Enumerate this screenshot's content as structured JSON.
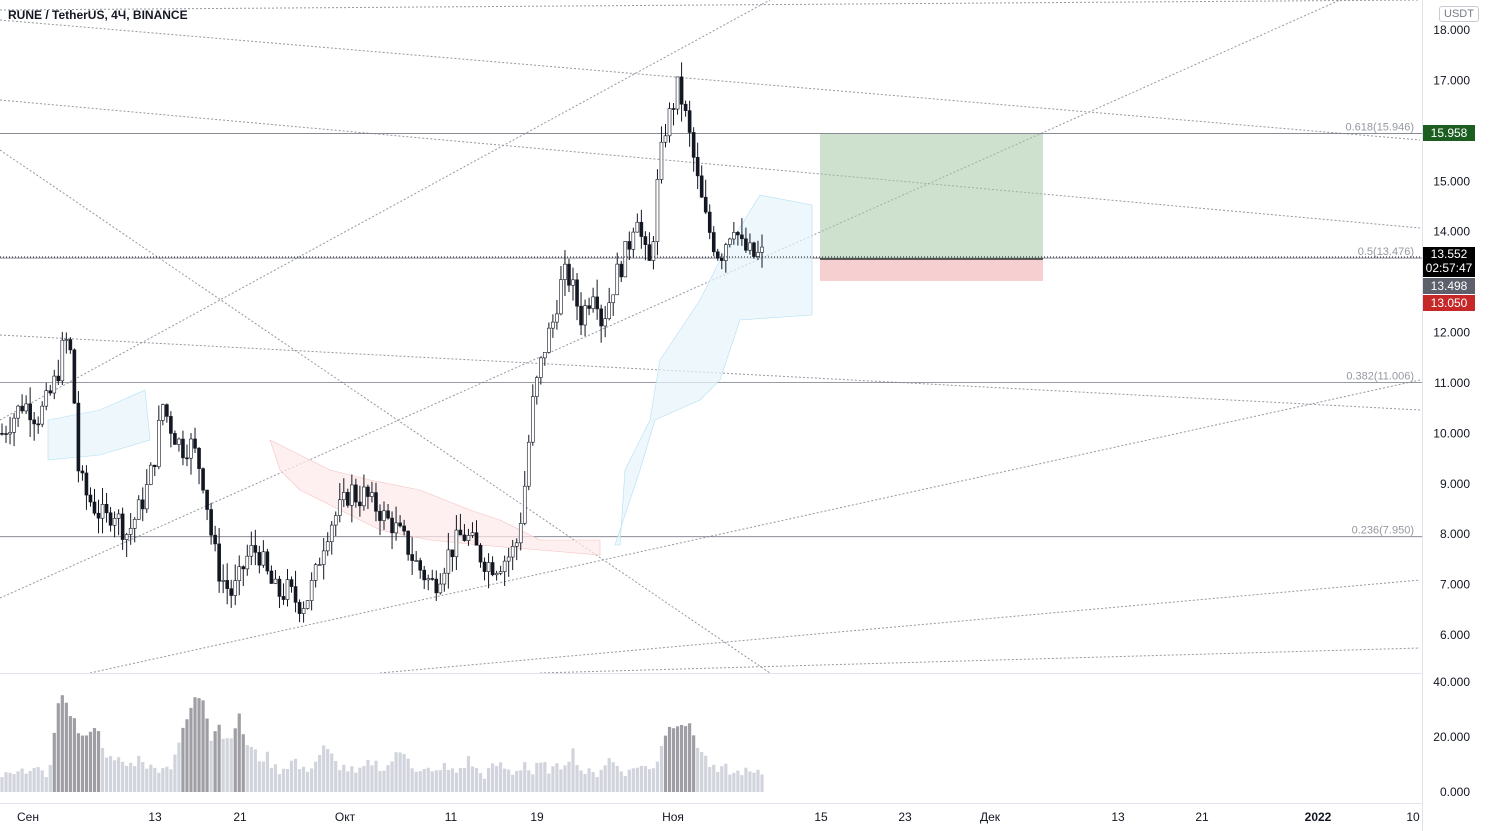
{
  "header": {
    "title": "RUNE / TetherUS, 4Ч, BINANCE"
  },
  "unit_button": "USDT",
  "price_axis": {
    "labels": [
      "18.000",
      "17.000",
      "15.000",
      "14.000",
      "12.000",
      "11.000",
      "10.000",
      "9.000",
      "8.000",
      "7.000",
      "6.000"
    ]
  },
  "volume_axis": {
    "labels": [
      "40.000",
      "20.000",
      "0.000"
    ]
  },
  "time_axis": {
    "labels": [
      "Сен",
      "13",
      "21",
      "Окт",
      "11",
      "19",
      "Ноя",
      "15",
      "23",
      "Дек",
      "13",
      "21",
      "2022",
      "10"
    ]
  },
  "price_tags": {
    "target": {
      "text": "15.958",
      "color": "#1b5e20"
    },
    "current": {
      "text": "13.552",
      "countdown": "02:57:47",
      "color": "#000000"
    },
    "entry": {
      "text": "13.498",
      "color": "#5d606b"
    },
    "stop": {
      "text": "13.050",
      "color": "#c62828"
    }
  },
  "fib_levels": [
    {
      "ratio": "0.618",
      "price": 15.946,
      "label": "0.618(15.946)"
    },
    {
      "ratio": "0.5",
      "price": 13.476,
      "label": "0.5(13.476)"
    },
    {
      "ratio": "0.382",
      "price": 11.006,
      "label": "0.382(11.006)"
    },
    {
      "ratio": "0.236",
      "price": 7.95,
      "label": "0.236(7.950)"
    }
  ],
  "chart_data": {
    "type": "candlestick",
    "symbol": "RUNE / TetherUS",
    "interval": "4Ч",
    "exchange": "BINANCE",
    "price_range": [
      5.0,
      18.5
    ],
    "volume_range": [
      0,
      40
    ],
    "grid": false,
    "position_tool": {
      "entry": 13.498,
      "target": 15.958,
      "stop": 13.05
    },
    "close_path": [
      10.0,
      10.2,
      10.4,
      10.6,
      10.5,
      10.3,
      10.5,
      10.8,
      11.2,
      11.9,
      11.5,
      9.2,
      8.8,
      8.6,
      8.4,
      8.3,
      8.5,
      8.2,
      8.0,
      8.3,
      8.6,
      9.0,
      9.6,
      10.6,
      10.2,
      9.9,
      9.7,
      9.8,
      9.5,
      9.0,
      8.0,
      7.3,
      7.0,
      6.8,
      7.1,
      7.5,
      7.7,
      7.6,
      7.2,
      6.9,
      6.8,
      6.9,
      6.7,
      6.6,
      6.8,
      7.2,
      7.8,
      8.2,
      8.4,
      8.6,
      8.9,
      8.7,
      8.8,
      8.6,
      8.5,
      8.3,
      8.2,
      8.0,
      7.8,
      7.5,
      7.3,
      7.1,
      7.0,
      7.3,
      7.6,
      7.8,
      8.0,
      7.9,
      7.7,
      7.5,
      7.4,
      7.4,
      7.5,
      7.6,
      7.9,
      9.0,
      10.5,
      11.2,
      11.8,
      12.2,
      12.9,
      13.2,
      12.8,
      12.3,
      12.6,
      13.0,
      12.2,
      12.6,
      13.1,
      13.4,
      13.8,
      14.5,
      13.6,
      13.3,
      14.9,
      16.0,
      16.4,
      16.9,
      16.3,
      15.6,
      14.8,
      14.2,
      13.8,
      13.5,
      13.9,
      14.2,
      13.7,
      13.6,
      13.5,
      13.55
    ],
    "volume_samples": [
      6,
      7,
      5,
      8,
      6,
      9,
      5,
      12,
      30,
      35,
      28,
      22,
      18,
      26,
      20,
      14,
      10,
      12,
      9,
      11,
      13,
      9,
      8,
      10,
      8,
      16,
      22,
      30,
      35,
      34,
      20,
      26,
      18,
      22,
      27,
      18,
      15,
      12,
      13,
      9,
      8,
      10,
      12,
      7,
      9,
      11,
      16,
      14,
      10,
      9,
      8,
      6,
      9,
      11,
      10,
      8,
      12,
      14,
      15,
      9,
      7,
      8,
      6,
      10,
      8,
      7,
      9,
      12,
      8,
      6,
      8,
      10,
      9,
      7,
      8,
      11,
      6,
      10,
      9,
      8,
      9,
      12,
      15,
      8,
      7,
      6,
      9,
      12,
      10,
      8,
      7,
      10,
      9,
      8,
      12,
      21,
      24,
      26,
      25,
      22,
      16,
      12,
      8,
      7,
      9,
      6,
      8,
      7,
      6,
      7
    ]
  }
}
